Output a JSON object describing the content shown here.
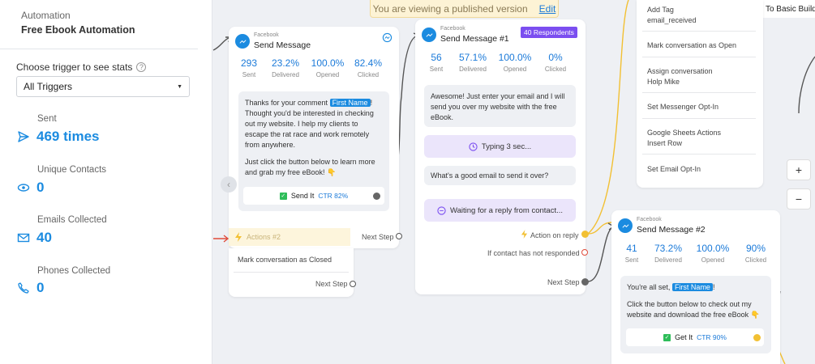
{
  "sidebar": {
    "subtitle": "Automation",
    "title": "Free Ebook Automation",
    "choose_label": "Choose trigger to see stats",
    "select_value": "All Triggers",
    "stats": [
      {
        "label": "Sent",
        "value": "469 times",
        "icon": "send-icon"
      },
      {
        "label": "Unique Contacts",
        "value": "0",
        "icon": "eye-icon"
      },
      {
        "label": "Emails Collected",
        "value": "40",
        "icon": "mail-icon"
      },
      {
        "label": "Phones Collected",
        "value": "0",
        "icon": "phone-icon"
      }
    ]
  },
  "banner": {
    "text": "You are viewing a published version",
    "edit": "Edit"
  },
  "go_basic": "Go To Basic Build",
  "node1": {
    "platform": "Facebook",
    "title": "Send Message",
    "stats": [
      {
        "num": "293",
        "label": "Sent"
      },
      {
        "num": "23.2%",
        "label": "Delivered"
      },
      {
        "num": "100.0%",
        "label": "Opened"
      },
      {
        "num": "82.4%",
        "label": "Clicked"
      }
    ],
    "msg_a": "Thanks for your comment",
    "tag": "First Name",
    "msg_b": "! Thought you'd be interested in checking out my website. I help my clients to escape the rat race and work remotely from anywhere.",
    "msg_c": "Just click the button below to learn more and grab my free eBook! 👇",
    "button": "Send It",
    "ctr": "CTR 82%",
    "actions_label": "Actions #2",
    "next_step": "Next Step",
    "action_item": "Mark conversation as Closed",
    "next_step2": "Next Step"
  },
  "node2": {
    "platform": "Facebook",
    "title": "Send Message #1",
    "badge": "40 Respondents",
    "stats": [
      {
        "num": "56",
        "label": "Sent"
      },
      {
        "num": "57.1%",
        "label": "Delivered"
      },
      {
        "num": "100.0%",
        "label": "Opened"
      },
      {
        "num": "0%",
        "label": "Clicked"
      }
    ],
    "msg1": "Awesome! Just enter your email and I will send you over my website with the free eBook.",
    "typing": "Typing 3 sec...",
    "msg2": "What's a good email to send it over?",
    "waiting": "Waiting for a reply from contact...",
    "action_reply": "Action on reply",
    "no_response": "If contact has not responded",
    "next_step": "Next Step"
  },
  "node3": {
    "platform": "Facebook",
    "title": "Send Message #2",
    "stats": [
      {
        "num": "41",
        "label": "Sent"
      },
      {
        "num": "73.2%",
        "label": "Delivered"
      },
      {
        "num": "100.0%",
        "label": "Opened"
      },
      {
        "num": "90%",
        "label": "Clicked"
      }
    ],
    "msg_a": "You're all set,",
    "tag": "First Name",
    "msg_b": "Click the button below to check out my website and download the free eBook 👇",
    "button": "Get It",
    "ctr": "CTR 90%"
  },
  "actions_panel": [
    {
      "label": "Add Tag",
      "sub": "email_received"
    },
    {
      "label": "Mark conversation as Open",
      "sub": ""
    },
    {
      "label": "Assign conversation",
      "sub": "Holp Mike"
    },
    {
      "label": "Set Messenger Opt-In",
      "sub": ""
    },
    {
      "label": "Google Sheets Actions",
      "sub": "Insert Row"
    },
    {
      "label": "Set Email Opt-In",
      "sub": ""
    }
  ],
  "zoom": {
    "plus": "+",
    "minus": "−"
  }
}
